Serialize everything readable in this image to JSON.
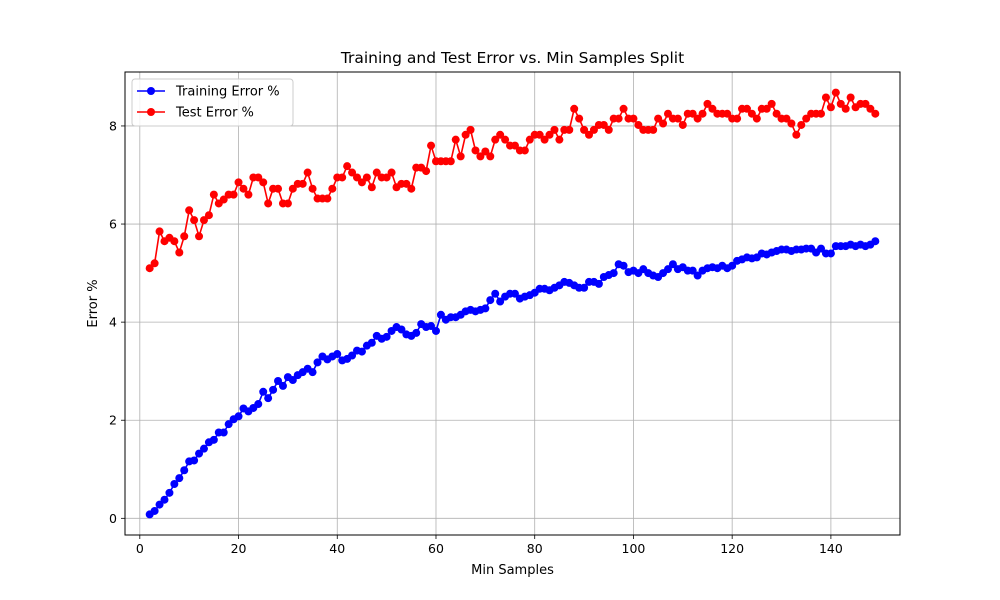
{
  "chart_data": {
    "type": "line",
    "title": "Training and Test Error vs. Min Samples Split",
    "xlabel": "Min Samples",
    "ylabel": "Error %",
    "xlim": [
      -3,
      154
    ],
    "ylim": [
      -0.34,
      9.1
    ],
    "xticks": [
      0,
      20,
      40,
      60,
      80,
      100,
      120,
      140
    ],
    "yticks": [
      0,
      2,
      4,
      6,
      8
    ],
    "grid": true,
    "legend_position": "top-left",
    "x_start": 2,
    "x_step": 1,
    "series": [
      {
        "name": "Training Error %",
        "color": "#0000ff",
        "marker": "circle",
        "values": [
          0.08,
          0.15,
          0.28,
          0.38,
          0.52,
          0.7,
          0.82,
          0.98,
          1.16,
          1.18,
          1.32,
          1.42,
          1.55,
          1.6,
          1.75,
          1.75,
          1.92,
          2.02,
          2.08,
          2.24,
          2.18,
          2.25,
          2.33,
          2.58,
          2.45,
          2.62,
          2.8,
          2.7,
          2.88,
          2.82,
          2.92,
          2.98,
          3.05,
          2.98,
          3.18,
          3.3,
          3.24,
          3.3,
          3.35,
          3.22,
          3.25,
          3.32,
          3.42,
          3.4,
          3.52,
          3.58,
          3.72,
          3.66,
          3.7,
          3.82,
          3.9,
          3.85,
          3.75,
          3.72,
          3.78,
          3.96,
          3.9,
          3.92,
          3.82,
          4.15,
          4.05,
          4.1,
          4.1,
          4.15,
          4.22,
          4.25,
          4.22,
          4.25,
          4.28,
          4.45,
          4.58,
          4.42,
          4.52,
          4.58,
          4.58,
          4.48,
          4.52,
          4.55,
          4.6,
          4.68,
          4.68,
          4.65,
          4.7,
          4.75,
          4.82,
          4.8,
          4.75,
          4.7,
          4.7,
          4.82,
          4.82,
          4.78,
          4.92,
          4.96,
          5.0,
          5.18,
          5.15,
          5.02,
          5.05,
          5.0,
          5.08,
          5.0,
          4.95,
          4.92,
          5.0,
          5.08,
          5.18,
          5.08,
          5.12,
          5.05,
          5.05,
          4.95,
          5.05,
          5.1,
          5.12,
          5.1,
          5.15,
          5.1,
          5.15,
          5.25,
          5.28,
          5.32,
          5.3,
          5.32,
          5.4,
          5.38,
          5.42,
          5.45,
          5.48,
          5.48,
          5.45,
          5.48,
          5.48,
          5.5,
          5.5,
          5.42,
          5.5,
          5.4,
          5.4,
          5.55,
          5.55,
          5.55,
          5.58,
          5.55,
          5.58,
          5.55,
          5.58,
          5.65
        ]
      },
      {
        "name": "Test Error %",
        "color": "#ff0000",
        "marker": "circle",
        "values": [
          5.1,
          5.2,
          5.85,
          5.65,
          5.72,
          5.65,
          5.42,
          5.75,
          6.28,
          6.08,
          5.75,
          6.08,
          6.18,
          6.6,
          6.42,
          6.5,
          6.6,
          6.6,
          6.85,
          6.72,
          6.6,
          6.95,
          6.95,
          6.85,
          6.42,
          6.72,
          6.72,
          6.42,
          6.42,
          6.72,
          6.82,
          6.82,
          7.05,
          6.72,
          6.52,
          6.52,
          6.52,
          6.72,
          6.95,
          6.95,
          7.18,
          7.05,
          6.95,
          6.85,
          6.95,
          6.75,
          7.05,
          6.95,
          6.95,
          7.05,
          6.75,
          6.82,
          6.82,
          6.72,
          7.15,
          7.15,
          7.08,
          7.6,
          7.28,
          7.28,
          7.28,
          7.28,
          7.72,
          7.38,
          7.82,
          7.92,
          7.5,
          7.38,
          7.48,
          7.38,
          7.72,
          7.82,
          7.72,
          7.6,
          7.6,
          7.5,
          7.5,
          7.72,
          7.82,
          7.82,
          7.72,
          7.82,
          7.92,
          7.72,
          7.92,
          7.92,
          8.35,
          8.15,
          7.92,
          7.82,
          7.92,
          8.02,
          8.02,
          7.92,
          8.15,
          8.15,
          8.35,
          8.15,
          8.15,
          8.02,
          7.92,
          7.92,
          7.92,
          8.15,
          8.05,
          8.25,
          8.15,
          8.15,
          8.02,
          8.25,
          8.25,
          8.15,
          8.25,
          8.45,
          8.35,
          8.25,
          8.25,
          8.25,
          8.15,
          8.15,
          8.35,
          8.35,
          8.25,
          8.15,
          8.35,
          8.35,
          8.45,
          8.25,
          8.15,
          8.15,
          8.05,
          7.82,
          8.02,
          8.15,
          8.25,
          8.25,
          8.25,
          8.58,
          8.38,
          8.68,
          8.45,
          8.35,
          8.58,
          8.38,
          8.45,
          8.45,
          8.35,
          8.25
        ]
      }
    ]
  }
}
